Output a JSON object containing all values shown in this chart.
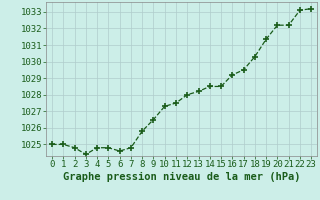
{
  "x": [
    0,
    1,
    2,
    3,
    4,
    5,
    6,
    7,
    8,
    9,
    10,
    11,
    12,
    13,
    14,
    15,
    16,
    17,
    18,
    19,
    20,
    21,
    22,
    23
  ],
  "y": [
    1025.0,
    1025.0,
    1024.8,
    1024.4,
    1024.8,
    1024.8,
    1024.6,
    1024.8,
    1025.8,
    1026.5,
    1027.3,
    1027.5,
    1028.0,
    1028.2,
    1028.5,
    1028.5,
    1029.2,
    1029.5,
    1030.3,
    1031.35,
    1032.2,
    1032.2,
    1033.1,
    1033.2
  ],
  "line_color": "#1a5c1a",
  "marker": "+",
  "marker_size": 4,
  "marker_linewidth": 1.2,
  "background_color": "#cceee8",
  "grid_color": "#b0cccc",
  "xlabel": "Graphe pression niveau de la mer (hPa)",
  "xlabel_color": "#1a5c1a",
  "xlabel_fontsize": 7.5,
  "tick_color": "#1a5c1a",
  "tick_fontsize": 6.5,
  "ylim": [
    1024.3,
    1033.6
  ],
  "yticks": [
    1025,
    1026,
    1027,
    1028,
    1029,
    1030,
    1031,
    1032,
    1033
  ],
  "xlim": [
    -0.5,
    23.5
  ],
  "xticks": [
    0,
    1,
    2,
    3,
    4,
    5,
    6,
    7,
    8,
    9,
    10,
    11,
    12,
    13,
    14,
    15,
    16,
    17,
    18,
    19,
    20,
    21,
    22,
    23
  ],
  "line_width": 0.9,
  "spine_color": "#888888"
}
